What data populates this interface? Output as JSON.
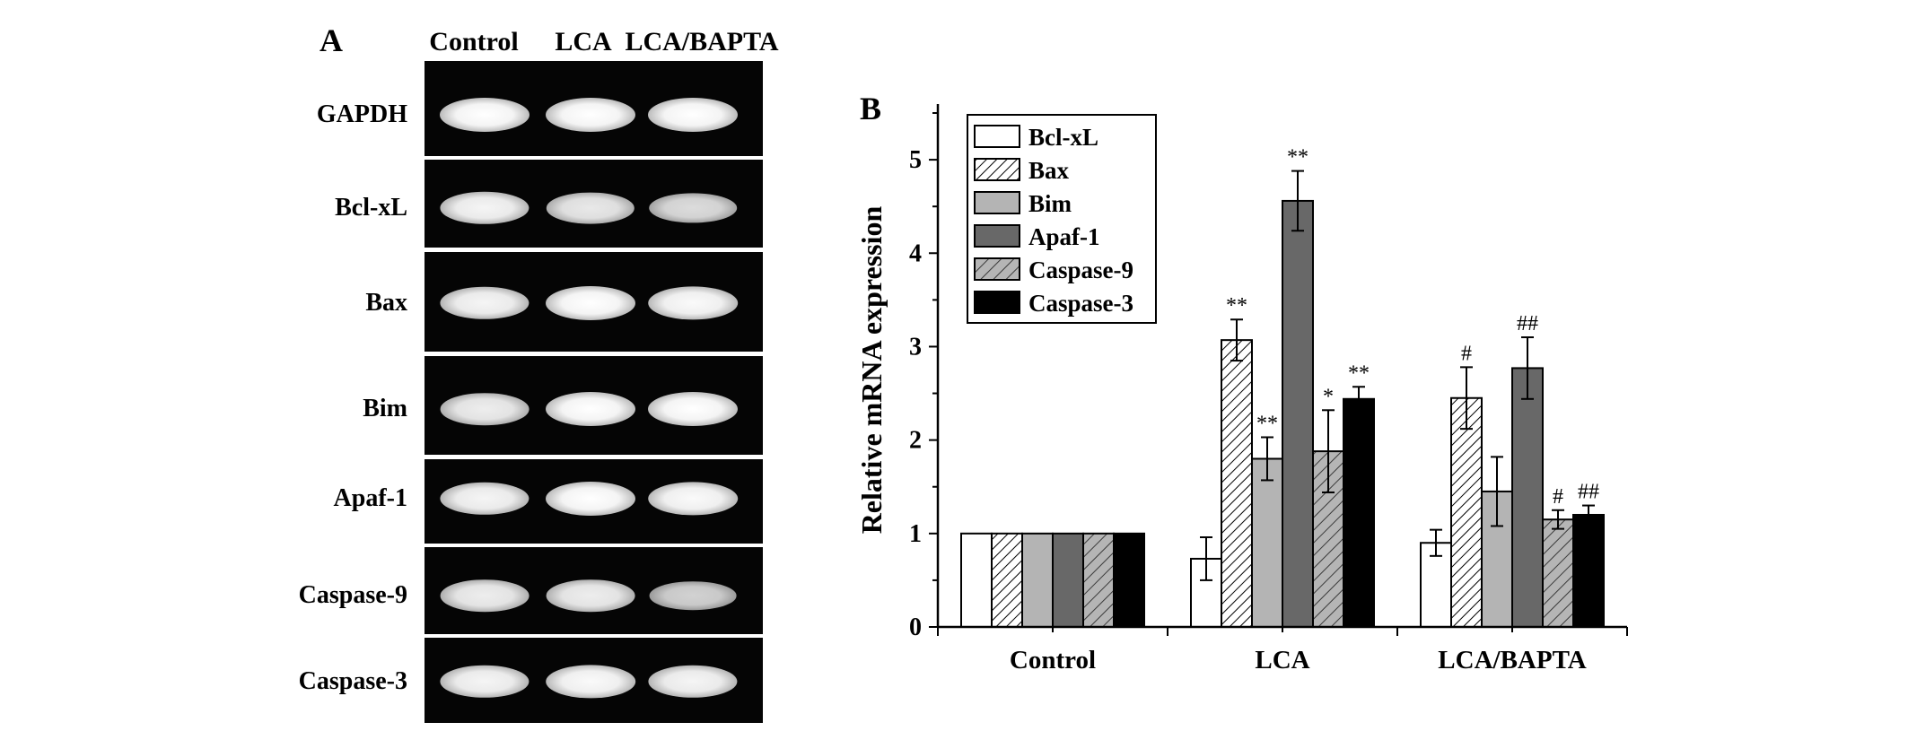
{
  "panel_a": {
    "letter": "A",
    "lanes": [
      "Control",
      "LCA",
      "LCA/BAPTA"
    ],
    "rows": [
      {
        "gene": "GAPDH",
        "band_intensity": [
          1.0,
          1.0,
          1.0
        ]
      },
      {
        "gene": "Bcl-xL",
        "band_intensity": [
          0.9,
          0.8,
          0.7
        ]
      },
      {
        "gene": "Bax",
        "band_intensity": [
          0.9,
          1.0,
          0.95
        ]
      },
      {
        "gene": "Bim",
        "band_intensity": [
          0.85,
          1.0,
          1.0
        ]
      },
      {
        "gene": "Apaf-1",
        "band_intensity": [
          0.9,
          1.0,
          0.95
        ]
      },
      {
        "gene": "Caspase-9",
        "band_intensity": [
          0.85,
          0.85,
          0.6
        ]
      },
      {
        "gene": "Caspase-3",
        "band_intensity": [
          0.9,
          0.95,
          0.9
        ]
      }
    ]
  },
  "panel_b": {
    "letter": "B"
  },
  "chart_data": {
    "type": "bar",
    "title": "",
    "xlabel": "",
    "ylabel": "Relative mRNA expression",
    "ylim": [
      0,
      5.5
    ],
    "yticks": [
      "0",
      "1",
      "2",
      "3",
      "4",
      "5"
    ],
    "categories": [
      "Control",
      "LCA",
      "LCA/BAPTA"
    ],
    "legend_position": "top-left",
    "series": [
      {
        "name": "Bcl-xL",
        "pattern": "white",
        "values": [
          1.0,
          0.73,
          0.9
        ],
        "errors": [
          0,
          0.23,
          0.14
        ],
        "annotations": [
          "",
          "",
          ""
        ]
      },
      {
        "name": "Bax",
        "pattern": "hatch-dense",
        "values": [
          1.0,
          3.07,
          2.45
        ],
        "errors": [
          0,
          0.22,
          0.33
        ],
        "annotations": [
          "",
          "**",
          "#"
        ]
      },
      {
        "name": "Bim",
        "pattern": "light-gray",
        "values": [
          1.0,
          1.8,
          1.45
        ],
        "errors": [
          0,
          0.23,
          0.37
        ],
        "annotations": [
          "",
          "**",
          ""
        ]
      },
      {
        "name": "Apaf-1",
        "pattern": "dark-gray",
        "values": [
          1.0,
          4.56,
          2.77
        ],
        "errors": [
          0,
          0.32,
          0.33
        ],
        "annotations": [
          "",
          "**",
          "##"
        ]
      },
      {
        "name": "Caspase-9",
        "pattern": "hatch-gray",
        "values": [
          1.0,
          1.88,
          1.15
        ],
        "errors": [
          0,
          0.44,
          0.1
        ],
        "annotations": [
          "",
          "*",
          "#"
        ]
      },
      {
        "name": "Caspase-3",
        "pattern": "black",
        "values": [
          1.0,
          2.44,
          1.2
        ],
        "errors": [
          0,
          0.13,
          0.1
        ],
        "annotations": [
          "",
          "**",
          "##"
        ]
      }
    ]
  }
}
